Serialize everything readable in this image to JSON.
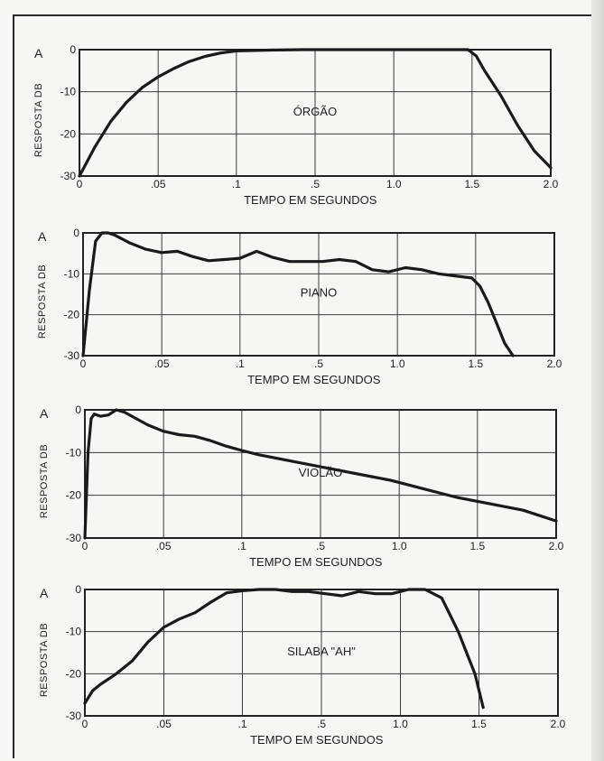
{
  "chart_data": [
    {
      "type": "line",
      "title": "ÓRGÃO",
      "corner_label": "A",
      "xlabel": "TEMPO EM SEGUNDOS",
      "ylabel": "RESPOSTA DB",
      "x_tick_labels": [
        "0",
        ".05",
        ".1",
        ".5",
        "1.0",
        "1.5",
        "2.0"
      ],
      "y_tick_labels": [
        "0",
        "-10",
        "-20",
        "-30"
      ],
      "ylim": [
        -30,
        0
      ],
      "x_scale": "piecewise (0–0.1 s linear, then 0.1–2.0 s linear)",
      "grid": true,
      "series": [
        {
          "x": [
            0,
            0.01,
            0.02,
            0.03,
            0.04,
            0.05,
            0.06,
            0.07,
            0.08,
            0.09,
            0.1,
            0.3,
            0.5,
            0.8,
            1.0,
            1.3,
            1.5,
            1.55,
            1.6,
            1.7,
            1.8,
            1.9,
            2.0
          ],
          "y": [
            -30,
            -23,
            -17,
            -12.5,
            -9,
            -6.5,
            -4.5,
            -2.8,
            -1.6,
            -0.8,
            -0.3,
            -0.1,
            0,
            0,
            0,
            0,
            0,
            -1.5,
            -5,
            -11,
            -18,
            -24,
            -28
          ]
        }
      ]
    },
    {
      "type": "line",
      "title": "PIANO",
      "corner_label": "A",
      "xlabel": "TEMPO EM SEGUNDOS",
      "ylabel": "RESPOSTA DB",
      "x_tick_labels": [
        "0",
        ".05",
        ".1",
        ".5",
        "1.0",
        "1.5",
        "2.0"
      ],
      "y_tick_labels": [
        "0",
        "-10",
        "-20",
        "-30"
      ],
      "ylim": [
        -30,
        0
      ],
      "x_scale": "piecewise (0–0.1 s linear, then 0.1–2.0 s linear)",
      "grid": true,
      "series": [
        {
          "x": [
            0,
            0.004,
            0.008,
            0.012,
            0.016,
            0.02,
            0.025,
            0.03,
            0.04,
            0.05,
            0.06,
            0.07,
            0.08,
            0.09,
            0.1,
            0.2,
            0.3,
            0.4,
            0.5,
            0.6,
            0.7,
            0.8,
            0.9,
            1.0,
            1.1,
            1.2,
            1.3,
            1.4,
            1.5,
            1.55,
            1.6,
            1.65,
            1.7,
            1.75
          ],
          "y": [
            -30,
            -14,
            -2,
            0,
            0,
            -0.5,
            -1.5,
            -2.5,
            -4,
            -4.8,
            -4.5,
            -5.8,
            -6.8,
            -6.5,
            -6.2,
            -4.5,
            -6,
            -7,
            -7,
            -7,
            -6.5,
            -7,
            -9,
            -9.5,
            -8.5,
            -9,
            -10,
            -10.5,
            -11,
            -13,
            -17,
            -22,
            -27,
            -30
          ]
        }
      ]
    },
    {
      "type": "line",
      "title": "VIOLÃO",
      "corner_label": "A",
      "xlabel": "TEMPO EM SEGUNDOS",
      "ylabel": "RESPOSTA DB",
      "x_tick_labels": [
        "0",
        ".05",
        ".1",
        ".5",
        "1.0",
        "1.5",
        "2.0"
      ],
      "y_tick_labels": [
        "0",
        "-10",
        "-20",
        "-30"
      ],
      "ylim": [
        -30,
        0
      ],
      "x_scale": "piecewise (0–0.1 s linear, then 0.1–2.0 s linear)",
      "grid": true,
      "series": [
        {
          "x": [
            0,
            0.002,
            0.004,
            0.006,
            0.01,
            0.015,
            0.02,
            0.025,
            0.03,
            0.04,
            0.05,
            0.06,
            0.07,
            0.08,
            0.09,
            0.1,
            0.2,
            0.4,
            0.6,
            0.8,
            1.0,
            1.2,
            1.4,
            1.6,
            1.8,
            2.0
          ],
          "y": [
            -30,
            -10,
            -2,
            -1,
            -1.5,
            -1.2,
            0,
            -0.5,
            -1.5,
            -3.5,
            -5,
            -5.8,
            -6.2,
            -7.2,
            -8.5,
            -9.5,
            -10.5,
            -12,
            -13.5,
            -15,
            -16.5,
            -18.5,
            -20.5,
            -22,
            -23.5,
            -26
          ]
        }
      ]
    },
    {
      "type": "line",
      "title": "SILABA \"AH\"",
      "corner_label": "A",
      "xlabel": "TEMPO EM SEGUNDOS",
      "ylabel": "RESPOSTA DB",
      "x_tick_labels": [
        "0",
        ".05",
        ".1",
        ".5",
        "1.0",
        "1.5",
        "2.0"
      ],
      "y_tick_labels": [
        "0",
        "-10",
        "-20",
        "-30"
      ],
      "ylim": [
        -30,
        0
      ],
      "x_scale": "piecewise (0–0.1 s linear, then 0.1–2.0 s linear)",
      "grid": true,
      "series": [
        {
          "x": [
            0,
            0.005,
            0.01,
            0.02,
            0.03,
            0.04,
            0.05,
            0.06,
            0.07,
            0.08,
            0.09,
            0.1,
            0.2,
            0.3,
            0.4,
            0.5,
            0.6,
            0.7,
            0.8,
            0.9,
            1.0,
            1.1,
            1.2,
            1.3,
            1.4,
            1.5,
            1.55
          ],
          "y": [
            -27,
            -24,
            -22.5,
            -20,
            -17,
            -12.5,
            -9,
            -7,
            -5.5,
            -3,
            -0.8,
            -0.3,
            0,
            0,
            -0.5,
            -0.5,
            -1,
            -1.5,
            -0.5,
            -1,
            -1,
            0,
            0,
            -2,
            -10,
            -20,
            -28
          ]
        }
      ]
    }
  ]
}
